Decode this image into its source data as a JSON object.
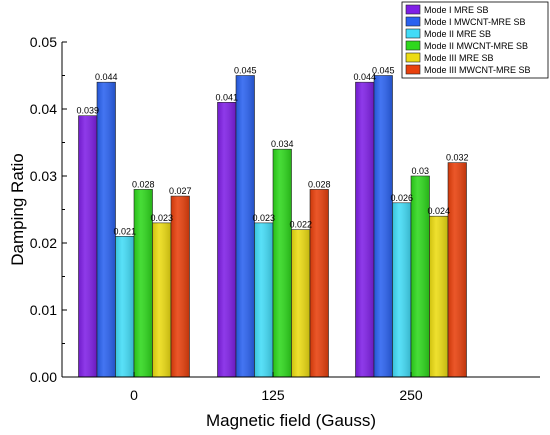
{
  "chart_data": {
    "type": "bar",
    "title": "",
    "xlabel": "Magnetic field (Gauss)",
    "ylabel": "Damping Ratio",
    "categories": [
      "0",
      "125",
      "250"
    ],
    "ylim": [
      0,
      0.05
    ],
    "yticks": [
      "0.00",
      "0.01",
      "0.02",
      "0.03",
      "0.04",
      "0.05"
    ],
    "legend_position": "top-right",
    "grid": false,
    "series": [
      {
        "name": "Mode I MRE SB",
        "color": "#7f1fe6",
        "values": [
          0.039,
          0.041,
          0.044
        ],
        "labels": [
          "0.039",
          "0.041",
          "0.044"
        ]
      },
      {
        "name": "Mode I MWCNT-MRE SB",
        "color": "#2a62f0",
        "values": [
          0.044,
          0.045,
          0.045
        ],
        "labels": [
          "0.044",
          "0.045",
          "0.045"
        ]
      },
      {
        "name": "Mode II MRE SB",
        "color": "#42dcf7",
        "values": [
          0.021,
          0.023,
          0.026
        ],
        "labels": [
          "0.021",
          "0.023",
          "0.026"
        ]
      },
      {
        "name": "Mode II MWCNT-MRE SB",
        "color": "#2ed81c",
        "values": [
          0.028,
          0.034,
          0.03
        ],
        "labels": [
          "0.028",
          "0.034",
          "0.03"
        ]
      },
      {
        "name": "Mode III MRE SB",
        "color": "#ecdc12",
        "values": [
          0.023,
          0.022,
          0.024
        ],
        "labels": [
          "0.023",
          "0.022",
          "0.024"
        ]
      },
      {
        "name": "Mode III MWCNT-MRE SB",
        "color": "#e8400c",
        "values": [
          0.027,
          0.028,
          0.032
        ],
        "labels": [
          "0.027",
          "0.028",
          "0.032"
        ]
      }
    ]
  }
}
